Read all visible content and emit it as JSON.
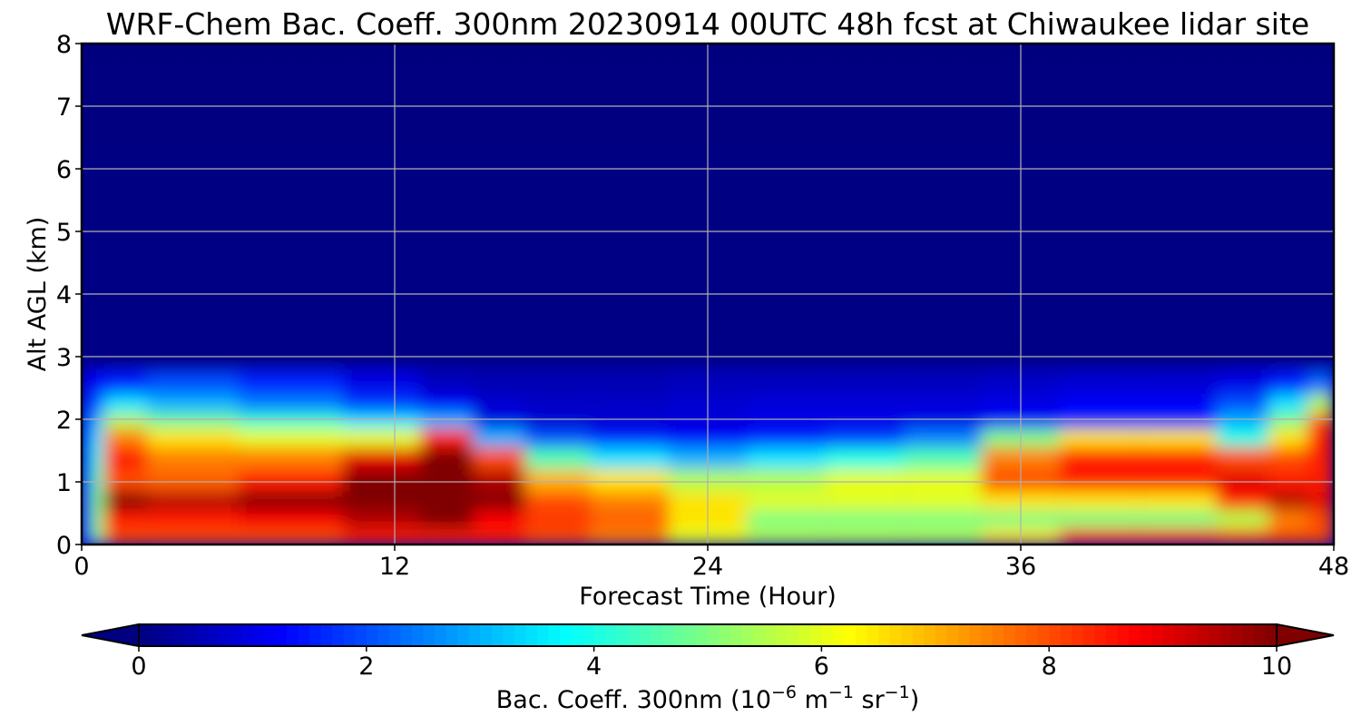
{
  "chart_data": {
    "type": "heatmap",
    "title": "WRF-Chem Bac. Coeff. 300nm  20230914 00UTC 48h fcst at Chiwaukee lidar site",
    "xlabel": "Forecast Time (Hour)",
    "ylabel": "Alt AGL (km)",
    "xlim": [
      0,
      48
    ],
    "ylim": [
      0,
      8
    ],
    "xticks": [
      0,
      12,
      24,
      36,
      48
    ],
    "yticks": [
      0,
      1,
      2,
      3,
      4,
      5,
      6,
      7,
      8
    ],
    "grid": true,
    "colormap": "jet",
    "colorbar": {
      "label_main": "Bac. Coeff. 300nm  (10",
      "label_exp1": "−6",
      "label_mid": " m",
      "label_exp2": "−1",
      "label_mid2": " sr",
      "label_exp3": "−1",
      "label_end": ")",
      "range": [
        0,
        10
      ],
      "ticks": [
        0,
        2,
        4,
        6,
        8,
        10
      ],
      "extend": "both",
      "orientation": "horizontal"
    },
    "hours": [
      0,
      0.7,
      1,
      4,
      8,
      12,
      14,
      16,
      18,
      21,
      24,
      27,
      30,
      33,
      36,
      39,
      42,
      45,
      46,
      48
    ],
    "series": [
      {
        "altitude_km": 2.6,
        "values": [
          1.0,
          1.2,
          1.5,
          2.0,
          1.6,
          1.0,
          0.6,
          0.5,
          0.5,
          0.5,
          0.6,
          0.6,
          0.6,
          0.6,
          0.7,
          0.8,
          0.8,
          1.0,
          1.5,
          2.3
        ]
      },
      {
        "altitude_km": 2.2,
        "values": [
          1.5,
          2.0,
          3.5,
          3.0,
          2.5,
          1.8,
          1.2,
          0.8,
          0.7,
          0.7,
          0.8,
          0.9,
          0.9,
          0.9,
          1.0,
          1.2,
          1.2,
          2.0,
          3.5,
          5.5
        ]
      },
      {
        "altitude_km": 2.0,
        "values": [
          1.8,
          3.0,
          5.5,
          4.8,
          4.2,
          3.5,
          3.0,
          1.0,
          0.8,
          0.8,
          0.9,
          1.0,
          1.0,
          1.0,
          1.2,
          1.5,
          1.5,
          3.0,
          5.0,
          8.0
        ]
      },
      {
        "altitude_km": 1.7,
        "values": [
          2.0,
          3.5,
          7.5,
          6.5,
          6.0,
          6.0,
          8.5,
          3.0,
          2.0,
          1.5,
          1.2,
          1.5,
          1.8,
          2.5,
          5.0,
          6.5,
          6.5,
          4.0,
          6.5,
          8.5
        ]
      },
      {
        "altitude_km": 1.4,
        "values": [
          2.0,
          4.0,
          8.5,
          7.5,
          7.5,
          9.0,
          10.0,
          8.0,
          4.5,
          3.5,
          3.0,
          3.5,
          4.0,
          4.5,
          7.5,
          8.5,
          8.5,
          8.0,
          8.0,
          8.5
        ]
      },
      {
        "altitude_km": 1.0,
        "values": [
          2.0,
          4.5,
          8.0,
          7.8,
          8.5,
          10.0,
          10.0,
          9.5,
          7.0,
          6.5,
          5.5,
          5.5,
          6.0,
          6.0,
          8.0,
          8.5,
          8.5,
          9.0,
          8.5,
          8.5
        ]
      },
      {
        "altitude_km": 0.7,
        "values": [
          2.0,
          5.0,
          10.0,
          9.5,
          10.0,
          10.0,
          10.0,
          10.0,
          8.0,
          7.5,
          6.5,
          6.0,
          6.0,
          6.0,
          6.5,
          6.5,
          6.5,
          8.5,
          9.5,
          9.0
        ]
      },
      {
        "altitude_km": 0.4,
        "values": [
          2.0,
          5.0,
          8.5,
          8.5,
          8.8,
          9.5,
          10.0,
          8.8,
          8.2,
          7.8,
          6.5,
          5.0,
          5.0,
          5.0,
          5.0,
          5.0,
          5.0,
          5.5,
          7.5,
          8.0
        ]
      },
      {
        "altitude_km": 0.1,
        "values": [
          2.0,
          5.0,
          8.0,
          8.0,
          8.0,
          8.5,
          8.5,
          8.5,
          8.0,
          7.5,
          6.0,
          5.5,
          5.5,
          5.5,
          6.5,
          8.5,
          8.5,
          8.0,
          8.0,
          8.0
        ]
      }
    ]
  }
}
